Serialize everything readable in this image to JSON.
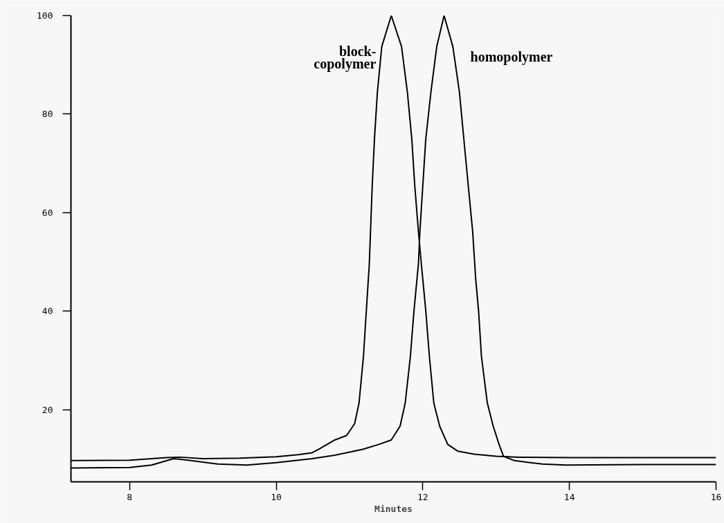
{
  "chart_data": {
    "type": "line",
    "xlabel": "Minutes",
    "xlim": [
      7.2,
      16.0
    ],
    "ylim": [
      5.4,
      100
    ],
    "xticks": [
      8,
      10,
      12,
      14,
      16
    ],
    "yticks": [
      20,
      40,
      60,
      80,
      100
    ],
    "grid": false,
    "marker": "none",
    "line_style": "solid",
    "series": [
      {
        "color": "#000000",
        "x": [
          7.2,
          8.0,
          8.5,
          8.7,
          9.0,
          9.5,
          10.0,
          10.3,
          10.49,
          10.58,
          10.8,
          10.96,
          11.07,
          11.13,
          11.19,
          11.23,
          11.27,
          11.31,
          11.34,
          11.38,
          11.44,
          11.57,
          11.71,
          11.79,
          11.85,
          11.89,
          11.94,
          11.98,
          12.04,
          12.09,
          12.15,
          12.23,
          12.34,
          12.48,
          12.7,
          13.0,
          13.32,
          14.0,
          15.0,
          16.0
        ],
        "values": [
          9.7,
          9.8,
          10.3,
          10.4,
          10.1,
          10.2,
          10.5,
          10.9,
          11.3,
          12.0,
          13.9,
          14.8,
          17.2,
          21.4,
          30.8,
          40.2,
          49.6,
          65.5,
          74.9,
          84.4,
          93.7,
          100,
          93.7,
          84.4,
          74.9,
          65.5,
          56.2,
          49.6,
          40.2,
          30.8,
          21.4,
          16.7,
          13.0,
          11.6,
          11.0,
          10.6,
          10.4,
          10.3,
          10.3,
          10.3
        ]
      },
      {
        "color": "#000000",
        "x": [
          7.2,
          8.0,
          8.3,
          8.6,
          8.8,
          9.2,
          9.6,
          10.0,
          10.49,
          10.8,
          11.18,
          11.4,
          11.57,
          11.69,
          11.76,
          11.83,
          11.88,
          11.94,
          11.96,
          12.0,
          12.04,
          12.11,
          12.19,
          12.29,
          12.41,
          12.5,
          12.56,
          12.62,
          12.68,
          12.72,
          12.76,
          12.8,
          12.88,
          12.96,
          13.04,
          13.1,
          13.25,
          13.63,
          13.95,
          15.0,
          16.0
        ],
        "values": [
          8.2,
          8.3,
          8.8,
          10.1,
          9.8,
          9.0,
          8.8,
          9.3,
          10.1,
          10.8,
          12.0,
          13.0,
          13.9,
          16.7,
          21.4,
          30.8,
          40.2,
          49.6,
          56.2,
          65.5,
          74.9,
          84.4,
          93.7,
          100,
          93.7,
          84.4,
          74.9,
          65.5,
          56.2,
          46.8,
          40.2,
          30.8,
          21.4,
          16.7,
          13.0,
          10.6,
          9.7,
          9.0,
          8.8,
          8.9,
          8.9
        ]
      }
    ],
    "annotations": [
      "block-\ncopolymer",
      "homopolymer"
    ]
  }
}
